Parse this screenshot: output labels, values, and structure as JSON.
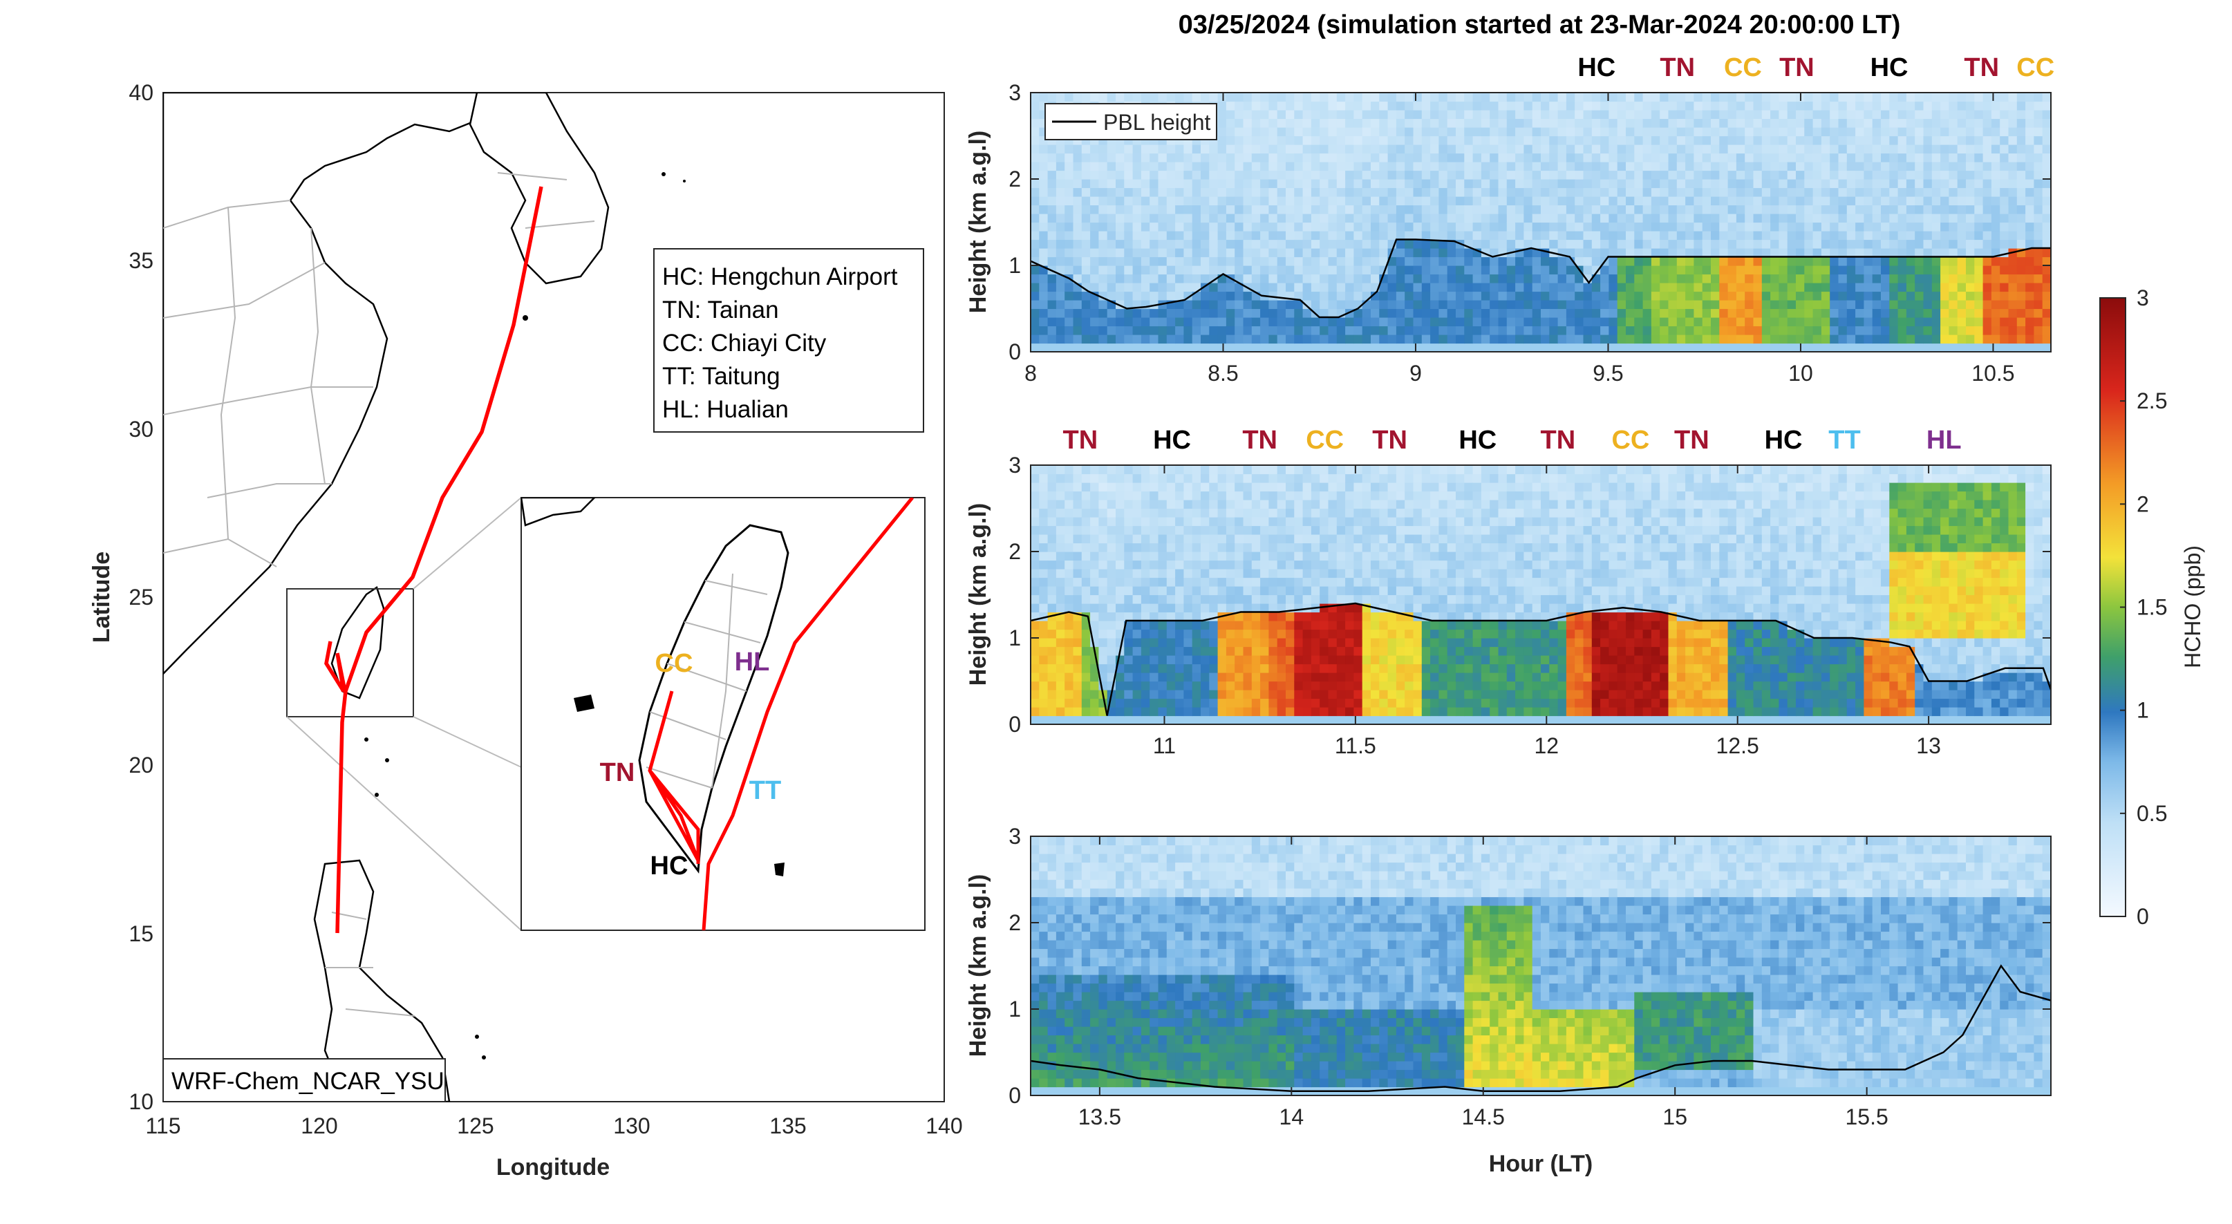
{
  "title": "03/25/2024 (simulation started at 23-Mar-2024 20:00:00 LT)",
  "colors": {
    "HC": "#000000",
    "TN": "#A2142F",
    "CC": "#EDB120",
    "TT": "#4DBEEE",
    "HL": "#7E2F8E",
    "track": "#FF0000"
  },
  "map": {
    "xlabel": "Longitude",
    "ylabel": "Latitude",
    "xticks": [
      "115",
      "120",
      "125",
      "130",
      "135",
      "140"
    ],
    "yticks": [
      "10",
      "15",
      "20",
      "25",
      "30",
      "35",
      "40"
    ],
    "xlim": [
      115,
      140
    ],
    "ylim": [
      10,
      40
    ],
    "model_label": "WRF-Chem_NCAR_YSU",
    "legend": [
      "HC: Hengchun Airport",
      "TN: Tainan",
      "CC: Chiayi City",
      "TT: Taitung",
      "HL: Hualian"
    ],
    "inset_sites": [
      {
        "code": "CC",
        "lon": 120.45,
        "lat": 23.48
      },
      {
        "code": "HL",
        "lon": 121.6,
        "lat": 23.98
      },
      {
        "code": "TN",
        "lon": 120.2,
        "lat": 23.0
      },
      {
        "code": "TT",
        "lon": 121.15,
        "lat": 22.75
      },
      {
        "code": "HC",
        "lon": 120.75,
        "lat": 22.03
      }
    ]
  },
  "chart_data": [
    {
      "type": "heatmap",
      "panel": "top",
      "xlim": [
        8,
        10.65
      ],
      "ylim": [
        0,
        3
      ],
      "xticks": [
        "8",
        "8.5",
        "9",
        "9.5",
        "10",
        "10.5"
      ],
      "yticks": [
        "0",
        "1",
        "2",
        "3"
      ],
      "xlabel": "",
      "ylabel": "Height (km a.g.l)",
      "legend": "PBL height",
      "site_labels": [
        {
          "code": "HC",
          "x": 9.47
        },
        {
          "code": "TN",
          "x": 9.68
        },
        {
          "code": "CC",
          "x": 9.85
        },
        {
          "code": "TN",
          "x": 9.99
        },
        {
          "code": "HC",
          "x": 10.23
        },
        {
          "code": "TN",
          "x": 10.47
        },
        {
          "code": "CC",
          "x": 10.61
        }
      ],
      "pbl": {
        "x": [
          8,
          8.05,
          8.1,
          8.15,
          8.2,
          8.25,
          8.3,
          8.4,
          8.5,
          8.6,
          8.7,
          8.75,
          8.8,
          8.85,
          8.9,
          8.95,
          9.0,
          9.1,
          9.2,
          9.3,
          9.4,
          9.45,
          9.5,
          9.6,
          9.7,
          9.8,
          9.9,
          10.0,
          10.1,
          10.2,
          10.3,
          10.4,
          10.5,
          10.6,
          10.65
        ],
        "y": [
          1.05,
          0.95,
          0.85,
          0.7,
          0.6,
          0.5,
          0.52,
          0.6,
          0.9,
          0.65,
          0.6,
          0.4,
          0.4,
          0.5,
          0.7,
          1.3,
          1.3,
          1.28,
          1.1,
          1.2,
          1.1,
          0.8,
          1.1,
          1.1,
          1.1,
          1.1,
          1.1,
          1.1,
          1.1,
          1.1,
          1.1,
          1.1,
          1.1,
          1.2,
          1.2
        ]
      },
      "high_segments": [
        {
          "x0": 9.53,
          "x1": 9.62,
          "v": 1.3
        },
        {
          "x0": 9.62,
          "x1": 9.78,
          "v": 1.5
        },
        {
          "x0": 9.78,
          "x1": 9.9,
          "v": 2.1
        },
        {
          "x0": 9.9,
          "x1": 10.08,
          "v": 1.4
        },
        {
          "x0": 10.24,
          "x1": 10.37,
          "v": 1.2
        },
        {
          "x0": 10.37,
          "x1": 10.48,
          "v": 1.7
        },
        {
          "x0": 10.48,
          "x1": 10.65,
          "v": 2.3
        }
      ]
    },
    {
      "type": "heatmap",
      "panel": "middle",
      "xlim": [
        10.65,
        13.32
      ],
      "ylim": [
        0,
        3
      ],
      "xticks": [
        "11",
        "11.5",
        "12",
        "12.5",
        "13"
      ],
      "yticks": [
        "0",
        "1",
        "2",
        "3"
      ],
      "xlabel": "",
      "ylabel": "Height (km a.g.l)",
      "site_labels": [
        {
          "code": "TN",
          "x": 10.78
        },
        {
          "code": "HC",
          "x": 11.02
        },
        {
          "code": "TN",
          "x": 11.25
        },
        {
          "code": "CC",
          "x": 11.42
        },
        {
          "code": "TN",
          "x": 11.59
        },
        {
          "code": "HC",
          "x": 11.82
        },
        {
          "code": "TN",
          "x": 12.03
        },
        {
          "code": "CC",
          "x": 12.22
        },
        {
          "code": "TN",
          "x": 12.38
        },
        {
          "code": "HC",
          "x": 12.62
        },
        {
          "code": "TT",
          "x": 12.78
        },
        {
          "code": "HL",
          "x": 13.04
        }
      ],
      "pbl": {
        "x": [
          10.65,
          10.75,
          10.8,
          10.85,
          10.9,
          11.0,
          11.1,
          11.2,
          11.3,
          11.4,
          11.5,
          11.6,
          11.7,
          11.8,
          11.9,
          12.0,
          12.1,
          12.2,
          12.3,
          12.4,
          12.5,
          12.6,
          12.7,
          12.8,
          12.9,
          12.95,
          13.0,
          13.1,
          13.2,
          13.3,
          13.32
        ],
        "y": [
          1.2,
          1.3,
          1.25,
          0.1,
          1.2,
          1.2,
          1.2,
          1.3,
          1.3,
          1.35,
          1.4,
          1.3,
          1.2,
          1.2,
          1.2,
          1.2,
          1.3,
          1.35,
          1.3,
          1.2,
          1.2,
          1.2,
          1.0,
          1.0,
          0.95,
          0.9,
          0.5,
          0.5,
          0.65,
          0.65,
          0.4
        ]
      },
      "high_segments": [
        {
          "x0": 10.65,
          "x1": 10.78,
          "v": 1.9
        },
        {
          "x0": 10.78,
          "x1": 10.85,
          "v": 1.5
        },
        {
          "x0": 10.85,
          "x1": 11.15,
          "v": 1.0
        },
        {
          "x0": 11.15,
          "x1": 11.28,
          "v": 2.1
        },
        {
          "x0": 11.28,
          "x1": 11.35,
          "v": 2.3
        },
        {
          "x0": 11.35,
          "x1": 11.52,
          "v": 2.7
        },
        {
          "x0": 11.52,
          "x1": 11.68,
          "v": 1.8
        },
        {
          "x0": 11.68,
          "x1": 12.05,
          "v": 1.2
        },
        {
          "x0": 12.05,
          "x1": 12.12,
          "v": 2.3
        },
        {
          "x0": 12.12,
          "x1": 12.32,
          "v": 2.8
        },
        {
          "x0": 12.32,
          "x1": 12.47,
          "v": 2.0
        },
        {
          "x0": 12.47,
          "x1": 12.82,
          "v": 1.1
        },
        {
          "x0": 12.82,
          "x1": 12.97,
          "v": 2.2
        },
        {
          "x0": 12.97,
          "x1": 13.32,
          "v": 0.9
        }
      ]
    },
    {
      "type": "heatmap",
      "panel": "bottom",
      "xlim": [
        13.32,
        15.98
      ],
      "ylim": [
        0,
        3
      ],
      "xticks": [
        "13.5",
        "14",
        "14.5",
        "15",
        "15.5"
      ],
      "yticks": [
        "0",
        "1",
        "2",
        "3"
      ],
      "xlabel": "Hour (LT)",
      "ylabel": "Height (km a.g.l)",
      "site_labels": [],
      "pbl": {
        "x": [
          13.32,
          13.4,
          13.5,
          13.6,
          13.8,
          14.0,
          14.2,
          14.4,
          14.5,
          14.7,
          14.85,
          14.9,
          15.0,
          15.1,
          15.2,
          15.3,
          15.4,
          15.5,
          15.6,
          15.7,
          15.75,
          15.8,
          15.85,
          15.9,
          15.98
        ],
        "y": [
          0.4,
          0.35,
          0.3,
          0.2,
          0.1,
          0.05,
          0.05,
          0.1,
          0.05,
          0.05,
          0.1,
          0.2,
          0.35,
          0.4,
          0.4,
          0.35,
          0.3,
          0.3,
          0.3,
          0.5,
          0.7,
          1.1,
          1.5,
          1.2,
          1.1
        ]
      }
    }
  ],
  "colorbar": {
    "label": "HCHO (ppb)",
    "ticks": [
      "0",
      "0.5",
      "1",
      "1.5",
      "2",
      "2.5",
      "3"
    ],
    "range": [
      0,
      3
    ]
  }
}
